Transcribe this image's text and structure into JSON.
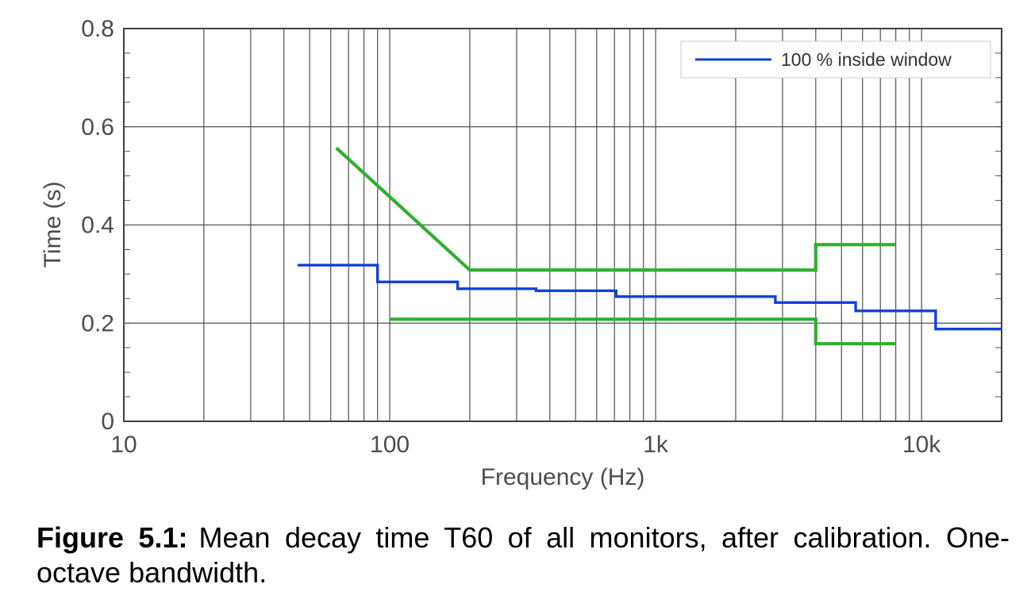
{
  "chart_data": {
    "type": "line",
    "xlabel": "Frequency (Hz)",
    "ylabel": "Time (s)",
    "xscale": "log",
    "xlim": [
      10,
      20000
    ],
    "ylim": [
      0,
      0.8
    ],
    "xticks": [
      10,
      100,
      1000,
      10000
    ],
    "xtick_labels": [
      "10",
      "100",
      "1k",
      "10k"
    ],
    "yticks": [
      0,
      0.2,
      0.4,
      0.6,
      0.8
    ],
    "ytick_labels": [
      "0",
      "0.2",
      "0.4",
      "0.6",
      "0.8"
    ],
    "grid": true,
    "legend_position": "top-right",
    "series": [
      {
        "name": "100 % inside window",
        "color": "#1040d8",
        "points": [
          [
            45,
            0.318
          ],
          [
            90,
            0.318
          ],
          [
            90,
            0.284
          ],
          [
            180,
            0.284
          ],
          [
            180,
            0.27
          ],
          [
            355,
            0.27
          ],
          [
            355,
            0.266
          ],
          [
            710,
            0.266
          ],
          [
            710,
            0.254
          ],
          [
            2820,
            0.254
          ],
          [
            2820,
            0.242
          ],
          [
            5650,
            0.242
          ],
          [
            5650,
            0.225
          ],
          [
            11300,
            0.225
          ],
          [
            11300,
            0.188
          ],
          [
            20000,
            0.188
          ]
        ]
      },
      {
        "color": "#2db030",
        "points": [
          [
            63,
            0.557
          ],
          [
            200,
            0.308
          ],
          [
            4000,
            0.308
          ],
          [
            4000,
            0.36
          ],
          [
            8000,
            0.36
          ]
        ]
      },
      {
        "color": "#2db030",
        "points": [
          [
            100,
            0.208
          ],
          [
            4000,
            0.208
          ],
          [
            4000,
            0.158
          ],
          [
            8000,
            0.158
          ]
        ]
      }
    ]
  },
  "caption": {
    "label": "Figure 5.1:",
    "text": "Mean decay time T60 of all monitors, after calibration. One-octave bandwidth."
  }
}
